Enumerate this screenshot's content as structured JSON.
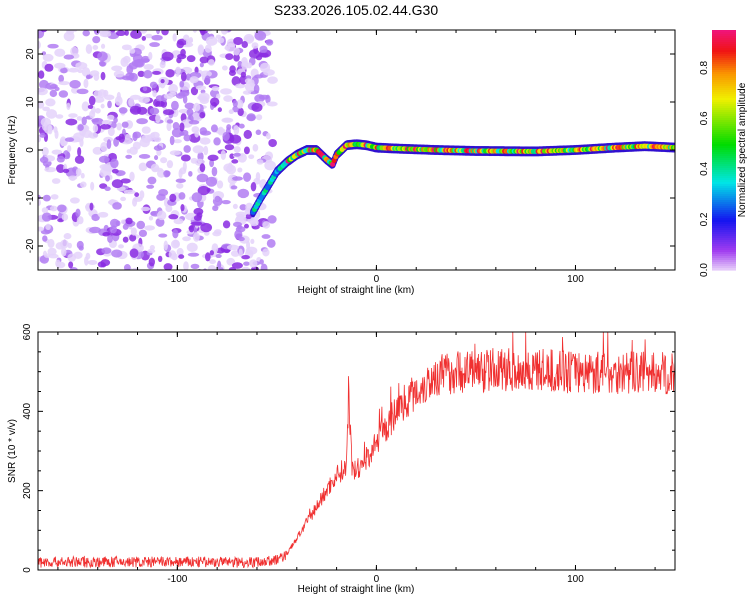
{
  "chart_data": [
    {
      "type": "heatmap",
      "title": "S233.2026.105.02.44.G30",
      "xlabel": "Height of straight line (km)",
      "ylabel": "Frequency (Hz)",
      "xlim": [
        -170,
        150
      ],
      "ylim": [
        -25,
        25
      ],
      "xticks": [
        -100,
        0,
        100
      ],
      "yticks": [
        -20,
        -10,
        0,
        10,
        20
      ],
      "colorbar": {
        "label": "Normalized spectral amplitude",
        "range": [
          0,
          0.95
        ],
        "ticks": [
          "0.0",
          "0.2",
          "0.4",
          "0.6",
          "0.8"
        ]
      },
      "noise_region_x": [
        -170,
        -55
      ],
      "ridge": {
        "x": [
          -62,
          -58,
          -55,
          -50,
          -45,
          -40,
          -35,
          -30,
          -25,
          -22,
          -20,
          -15,
          -10,
          -5,
          0,
          10,
          30,
          50,
          80,
          100,
          120,
          135,
          150
        ],
        "y": [
          -13,
          -10,
          -8,
          -4.5,
          -2.5,
          -1,
          0,
          0,
          -2,
          -3,
          -1,
          1,
          1.2,
          1,
          0.5,
          0.3,
          0,
          -0.2,
          -0.3,
          0,
          0.5,
          0.8,
          0.5
        ]
      }
    },
    {
      "type": "line",
      "xlabel": "Height of straight line (km)",
      "ylabel": "SNR (10 * v/v)",
      "xlim": [
        -170,
        150
      ],
      "ylim": [
        0,
        600
      ],
      "xticks": [
        -100,
        0,
        100
      ],
      "yticks": [
        0,
        200,
        400,
        600
      ],
      "color": "#f03030",
      "x": [
        -170,
        -60,
        -50,
        -45,
        -40,
        -35,
        -30,
        -25,
        -20,
        -15,
        -14,
        -12,
        -10,
        -5,
        0,
        5,
        10,
        15,
        20,
        25,
        30,
        40,
        60,
        100,
        150
      ],
      "y": [
        20,
        20,
        25,
        40,
        80,
        120,
        160,
        200,
        240,
        260,
        430,
        240,
        250,
        280,
        320,
        360,
        400,
        430,
        450,
        470,
        490,
        500,
        505,
        500,
        495
      ]
    }
  ]
}
